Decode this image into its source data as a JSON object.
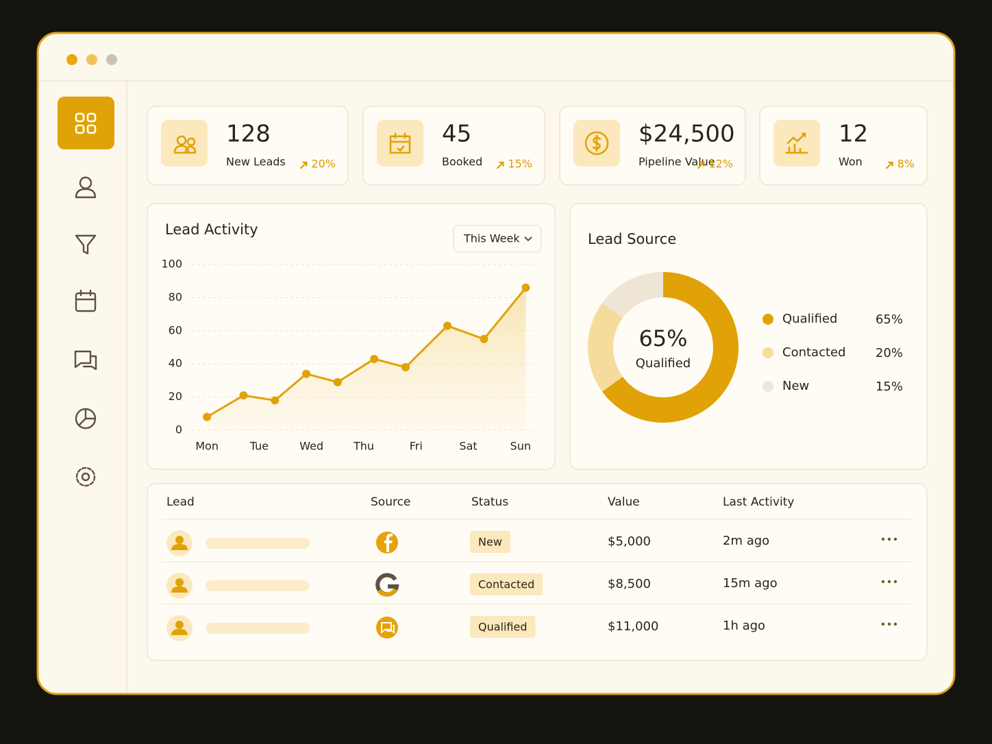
{
  "kpis": [
    {
      "value": "128",
      "label": "New Leads",
      "change": "20%"
    },
    {
      "value": "45",
      "label": "Booked",
      "change": "15%"
    },
    {
      "value": "$24,500",
      "label": "Pipeline Value",
      "change": "12%"
    },
    {
      "value": "12",
      "label": "Won",
      "change": "8%"
    }
  ],
  "chart_data": [
    {
      "type": "line",
      "title": "Lead Activity",
      "filter": "This Week",
      "x": [
        0,
        0.7,
        1.3,
        1.9,
        2.5,
        3.2,
        3.8,
        4.6,
        5.3,
        6.1
      ],
      "values": [
        8,
        21,
        18,
        34,
        29,
        43,
        38,
        63,
        55,
        86
      ],
      "xlim": [
        -0.29,
        6.33
      ],
      "xticks": [
        {
          "value": 0,
          "label": "Mon"
        },
        {
          "value": 1,
          "label": "Tue"
        },
        {
          "value": 2,
          "label": "Wed"
        },
        {
          "value": 3,
          "label": "Thu"
        },
        {
          "value": 4,
          "label": "Fri"
        },
        {
          "value": 5,
          "label": "Sat"
        },
        {
          "value": 6,
          "label": "Sun"
        }
      ],
      "ylim": [
        0,
        100
      ],
      "yticks": [
        0,
        20,
        40,
        60,
        80,
        100
      ],
      "grid": true,
      "color": "#e0a206"
    },
    {
      "type": "pie",
      "title": "Lead Source",
      "center_value": "65%",
      "center_label": "Qualified",
      "categories": [
        "Qualified",
        "Contacted",
        "New"
      ],
      "values": [
        65,
        20,
        15
      ],
      "value_labels": [
        "65%",
        "20%",
        "15%"
      ],
      "colors": [
        "#e0a206",
        "#f6dc9c",
        "#efe5d6"
      ]
    }
  ],
  "table": {
    "headers": [
      "Lead",
      "Source",
      "Status",
      "Value",
      "Last Activity"
    ],
    "rows": [
      {
        "status": "New",
        "value": "$5,000",
        "last_activity": "2m ago"
      },
      {
        "status": "Contacted",
        "value": "$8,500",
        "last_activity": "15m ago"
      },
      {
        "status": "Qualified",
        "value": "$11,000",
        "last_activity": "1h ago"
      }
    ]
  }
}
